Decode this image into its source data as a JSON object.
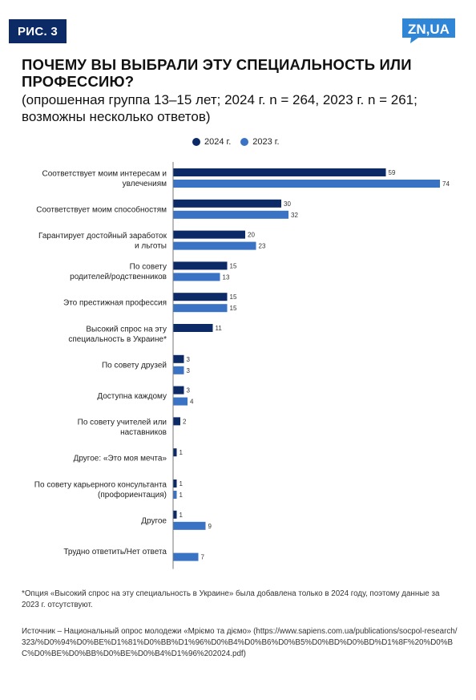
{
  "figure": {
    "badge": "РИС. 3",
    "logo_text": "ZN,UA"
  },
  "title": "ПОЧЕМУ ВЫ ВЫБРАЛИ ЭТУ СПЕЦИАЛЬНОСТЬ ИЛИ ПРОФЕССИЮ?",
  "subtitle": "(опрошенная группа 13–15 лет; 2024 г. n = 264, 2023 г. n = 261; возможны несколько ответов)",
  "colors": {
    "series_2024": "#0b2a66",
    "series_2023": "#3b73c4",
    "badge": "#0b2a66",
    "logo": "#2f86d6"
  },
  "chart_data": {
    "type": "bar",
    "orientation": "horizontal",
    "legend_position": "top",
    "grid": false,
    "categories": [
      [
        "Соответствует моим интересам и",
        "увлечениям"
      ],
      [
        "Соответствует моим способностям"
      ],
      [
        "Гарантирует достойный заработок",
        "и льготы"
      ],
      [
        "По совету",
        "родителей/родственников"
      ],
      [
        "Это престижная профессия"
      ],
      [
        "Высокий спрос на эту",
        "специальность в Украине*"
      ],
      [
        "По совету друзей"
      ],
      [
        "Доступна каждому"
      ],
      [
        "По совету учителей или",
        "наставников"
      ],
      [
        "Другое: «Это моя мечта»"
      ],
      [
        "По совету карьерного консультанта",
        "(профориентация)"
      ],
      [
        "Другое"
      ],
      [
        "Трудно ответить/Нет ответа"
      ]
    ],
    "series": [
      {
        "name": "2024 г.",
        "values": [
          59,
          30,
          20,
          15,
          15,
          11,
          3,
          3,
          2,
          1,
          1,
          1,
          null
        ]
      },
      {
        "name": "2023 г.",
        "values": [
          74,
          32,
          23,
          13,
          15,
          null,
          3,
          4,
          null,
          null,
          1,
          9,
          7
        ]
      }
    ]
  },
  "footnote": "*Опция «Высокий спрос на эту специальность в Украине» была добавлена только в 2024 году, поэтому данные за 2023 г. отсутствуют.",
  "source": "Источник – Национальный опрос молодежи «Мріємо та діємо» (https://www.sapiens.com.ua/publications/socpol-research/323/%D0%94%D0%BE%D1%81%D0%BB%D1%96%D0%B4%D0%B6%D0%B5%D0%BD%D0%BD%D1%8F%20%D0%BC%D0%BE%D0%BB%D0%BE%D0%B4%D1%96%202024.pdf)"
}
